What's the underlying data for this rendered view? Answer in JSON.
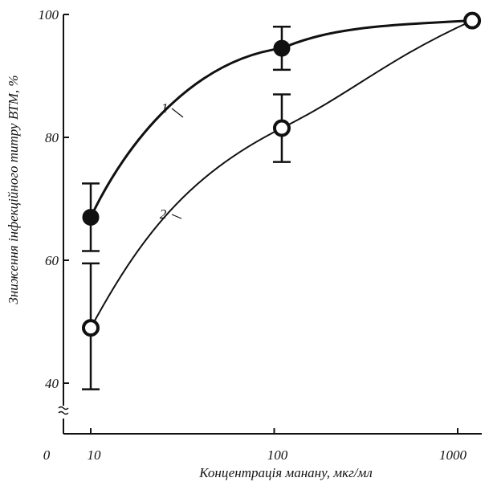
{
  "chart_data": {
    "type": "line",
    "title": "",
    "xlabel": "Концентрація манану, мкг/мл",
    "ylabel": "Зниження інфекційного титру ВТМ, %",
    "x_scale": "log",
    "x_ticks": [
      10,
      100,
      1000
    ],
    "x_tick_labels": [
      "10",
      "100",
      "1000"
    ],
    "x_origin_label": "0",
    "y_ticks": [
      40,
      60,
      80,
      100
    ],
    "y_tick_labels": [
      "40",
      "60",
      "80",
      "100"
    ],
    "ylim": [
      36,
      100
    ],
    "grid": false,
    "legend": "curve number labels on chart",
    "series": [
      {
        "name": "1",
        "marker": "filled-circle",
        "points": [
          {
            "x": 10,
            "y": 67,
            "err_low": 61.5,
            "err_high": 72.5
          },
          {
            "x": 110,
            "y": 94.5,
            "err_low": 91,
            "err_high": 98
          },
          {
            "x": 1200,
            "y": 99,
            "err_low": null,
            "err_high": null
          }
        ]
      },
      {
        "name": "2",
        "marker": "open-circle",
        "points": [
          {
            "x": 10,
            "y": 49,
            "err_low": 39,
            "err_high": 59.5
          },
          {
            "x": 110,
            "y": 81.5,
            "err_low": 76,
            "err_high": 87
          },
          {
            "x": 1200,
            "y": 99,
            "err_low": null,
            "err_high": null
          }
        ]
      }
    ],
    "colors": {
      "ink": "#111111",
      "background": "#ffffff"
    }
  }
}
